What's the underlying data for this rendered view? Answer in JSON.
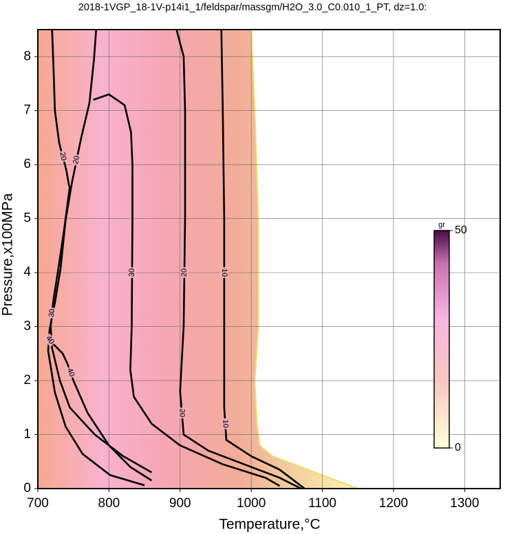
{
  "chart_data": {
    "type": "contour",
    "title": "2018-1VGP_18-1V-p14i1_1/feldspar/massgm/H2O_3.0_C0.010_1_PT, dz=1.0:",
    "x_label": "Temperature,°C",
    "y_label": "Pressure,x100MPa",
    "xlim": [
      700,
      1350
    ],
    "ylim": [
      0,
      8.5
    ],
    "xticks": [
      700,
      800,
      900,
      1000,
      1100,
      1200,
      1300
    ],
    "yticks": [
      0,
      1,
      2,
      3,
      4,
      5,
      6,
      7,
      8
    ],
    "grid": true,
    "field_boundary": {
      "x": [
        1000,
        1005,
        1010,
        1010,
        1005,
        1008,
        1012,
        1030,
        1060,
        1090,
        1110,
        1130,
        1150
      ],
      "y": [
        8.5,
        7,
        5,
        3,
        2,
        1.2,
        0.8,
        0.6,
        0.45,
        0.3,
        0.2,
        0.1,
        0
      ]
    },
    "contours": [
      {
        "level": 20,
        "x": [
          720,
          722,
          724,
          730,
          740,
          744
        ],
        "y": [
          8.5,
          7.8,
          7.0,
          6.4,
          5.9,
          5.6
        ]
      },
      {
        "level": 20,
        "x": [
          782,
          779,
          772.5,
          761,
          748,
          739,
          732,
          724,
          716.4,
          714.5,
          724,
          739,
          763,
          801.6,
          850
        ],
        "y": [
          8.5,
          7.96,
          7.14,
          6.5,
          5.67,
          4.97,
          4.08,
          3.44,
          2.93,
          2.55,
          1.78,
          1.15,
          0.64,
          0.25,
          0.06
        ]
      },
      {
        "level": 30,
        "x": [
          745,
          737,
          728,
          722,
          718,
          720,
          731,
          745,
          780,
          820,
          860
        ],
        "y": [
          5.6,
          4.8,
          4.0,
          3.5,
          3.0,
          2.6,
          2.0,
          1.5,
          1.0,
          0.6,
          0.3
        ]
      },
      {
        "level": 40,
        "x": [
          714,
          720,
          735,
          742,
          750,
          770,
          800,
          830,
          860
        ],
        "y": [
          2.8,
          2.7,
          2.5,
          2.3,
          2.0,
          1.4,
          0.8,
          0.4,
          0.15
        ]
      },
      {
        "level": 30,
        "x": [
          778,
          800,
          822,
          831,
          833,
          833,
          832,
          830,
          835,
          860,
          900,
          960,
          1020,
          1040
        ],
        "y": [
          7.2,
          7.3,
          7.1,
          6.6,
          6.0,
          5.0,
          3.0,
          2.2,
          1.7,
          1.2,
          0.8,
          0.45,
          0.2,
          0.05
        ]
      },
      {
        "level": 20,
        "x": [
          895,
          905,
          907,
          907,
          905,
          900,
          905,
          940,
          990,
          1040,
          1070
        ],
        "y": [
          8.5,
          8.0,
          7.0,
          5.0,
          3.0,
          1.8,
          1.0,
          0.7,
          0.45,
          0.2,
          0
        ]
      },
      {
        "level": 10,
        "x": [
          958,
          960,
          962,
          962,
          962,
          965,
          1000,
          1040,
          1070,
          1075
        ],
        "y": [
          8.5,
          7.0,
          5.0,
          3.0,
          1.5,
          0.9,
          0.6,
          0.35,
          0.05,
          0
        ]
      }
    ],
    "colorbar": {
      "label": "gr",
      "lim": [
        0,
        50
      ],
      "ticks": [
        0,
        50
      ]
    }
  }
}
